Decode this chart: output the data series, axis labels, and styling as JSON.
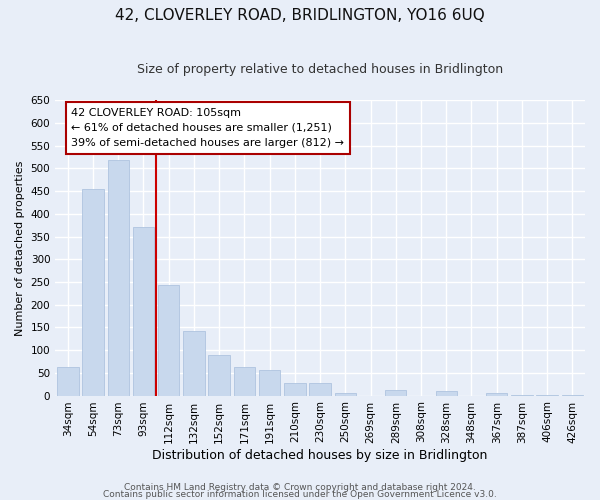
{
  "title": "42, CLOVERLEY ROAD, BRIDLINGTON, YO16 6UQ",
  "subtitle": "Size of property relative to detached houses in Bridlington",
  "xlabel": "Distribution of detached houses by size in Bridlington",
  "ylabel": "Number of detached properties",
  "bar_labels": [
    "34sqm",
    "54sqm",
    "73sqm",
    "93sqm",
    "112sqm",
    "132sqm",
    "152sqm",
    "171sqm",
    "191sqm",
    "210sqm",
    "230sqm",
    "250sqm",
    "269sqm",
    "289sqm",
    "308sqm",
    "328sqm",
    "348sqm",
    "367sqm",
    "387sqm",
    "406sqm",
    "426sqm"
  ],
  "bar_values": [
    62,
    455,
    519,
    370,
    243,
    143,
    89,
    62,
    57,
    27,
    28,
    5,
    0,
    13,
    0,
    10,
    0,
    5,
    2,
    2,
    2
  ],
  "bar_color": "#c8d8ed",
  "bar_edge_color": "#afc4df",
  "vline_color": "#cc0000",
  "ylim": [
    0,
    650
  ],
  "yticks": [
    0,
    50,
    100,
    150,
    200,
    250,
    300,
    350,
    400,
    450,
    500,
    550,
    600,
    650
  ],
  "annotation_title": "42 CLOVERLEY ROAD: 105sqm",
  "annotation_line1": "← 61% of detached houses are smaller (1,251)",
  "annotation_line2": "39% of semi-detached houses are larger (812) →",
  "annotation_box_facecolor": "#ffffff",
  "annotation_box_edgecolor": "#aa0000",
  "footer_line1": "Contains HM Land Registry data © Crown copyright and database right 2024.",
  "footer_line2": "Contains public sector information licensed under the Open Government Licence v3.0.",
  "bg_color": "#e8eef8",
  "plot_bg_color": "#e8eef8",
  "grid_color": "#ffffff",
  "title_fontsize": 11,
  "subtitle_fontsize": 9,
  "xlabel_fontsize": 9,
  "ylabel_fontsize": 8,
  "tick_fontsize": 7.5,
  "footer_fontsize": 6.5
}
